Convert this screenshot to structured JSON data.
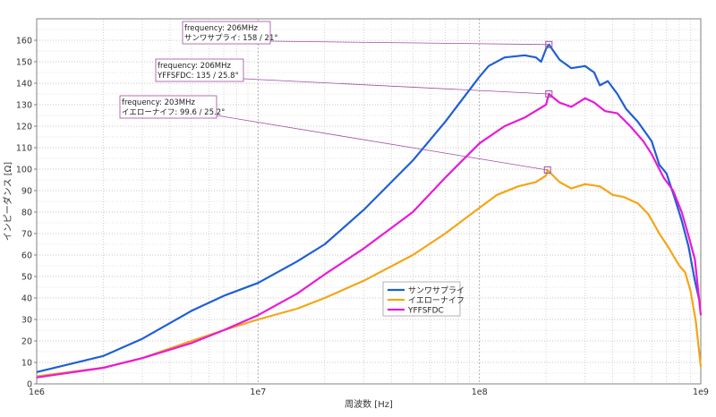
{
  "chart_data": {
    "type": "line",
    "xlabel": "周波数 [Hz]",
    "ylabel": "インピーダンス [Ω]",
    "xscale": "log",
    "xlim": [
      1000000,
      1000000000
    ],
    "ylim": [
      0,
      170
    ],
    "grid": true,
    "legend_position": "bottom-center",
    "x_tick_labels": [
      {
        "value": 1000000,
        "label": "1e6"
      },
      {
        "value": 10000000,
        "label": "1e7"
      },
      {
        "value": 100000000,
        "label": "1e8"
      },
      {
        "value": 1000000000,
        "label": "1e9"
      }
    ],
    "y_ticks": [
      0,
      10,
      20,
      30,
      40,
      50,
      60,
      70,
      80,
      90,
      100,
      110,
      120,
      130,
      140,
      150,
      160
    ],
    "series": [
      {
        "name": "サンワサプライ",
        "color": "#1f5fd6",
        "points": [
          [
            1000000,
            5.5
          ],
          [
            2000000,
            13
          ],
          [
            3000000,
            21
          ],
          [
            5000000,
            34
          ],
          [
            7000000,
            41
          ],
          [
            10000000,
            47
          ],
          [
            15000000,
            57
          ],
          [
            20000000,
            65
          ],
          [
            30000000,
            81
          ],
          [
            50000000,
            104
          ],
          [
            70000000,
            122
          ],
          [
            100000000,
            143
          ],
          [
            110000000,
            148
          ],
          [
            130000000,
            152
          ],
          [
            160000000,
            153
          ],
          [
            180000000,
            152
          ],
          [
            190000000,
            150
          ],
          [
            200000000,
            156
          ],
          [
            206000000,
            158
          ],
          [
            230000000,
            151
          ],
          [
            260000000,
            147
          ],
          [
            300000000,
            148
          ],
          [
            330000000,
            145
          ],
          [
            350000000,
            139
          ],
          [
            380000000,
            141
          ],
          [
            420000000,
            135
          ],
          [
            460000000,
            128
          ],
          [
            520000000,
            122
          ],
          [
            600000000,
            113
          ],
          [
            650000000,
            102
          ],
          [
            700000000,
            98
          ],
          [
            760000000,
            87
          ],
          [
            820000000,
            76
          ],
          [
            880000000,
            64
          ],
          [
            940000000,
            48
          ],
          [
            980000000,
            40
          ]
        ]
      },
      {
        "name": "イエローナイフ",
        "color": "#f5a515",
        "points": [
          [
            1000000,
            3.5
          ],
          [
            2000000,
            7.5
          ],
          [
            3000000,
            12
          ],
          [
            5000000,
            20
          ],
          [
            7000000,
            25
          ],
          [
            10000000,
            30
          ],
          [
            15000000,
            35
          ],
          [
            20000000,
            40
          ],
          [
            30000000,
            48
          ],
          [
            50000000,
            60
          ],
          [
            70000000,
            70
          ],
          [
            100000000,
            82
          ],
          [
            120000000,
            88
          ],
          [
            150000000,
            92
          ],
          [
            180000000,
            94
          ],
          [
            200000000,
            97
          ],
          [
            203000000,
            99.6
          ],
          [
            230000000,
            94
          ],
          [
            260000000,
            91
          ],
          [
            300000000,
            93
          ],
          [
            350000000,
            92
          ],
          [
            400000000,
            88
          ],
          [
            450000000,
            87
          ],
          [
            520000000,
            84
          ],
          [
            580000000,
            79
          ],
          [
            650000000,
            70
          ],
          [
            720000000,
            63
          ],
          [
            800000000,
            55
          ],
          [
            850000000,
            52
          ],
          [
            900000000,
            43
          ],
          [
            950000000,
            29
          ],
          [
            1000000000,
            8
          ]
        ]
      },
      {
        "name": "YFFSFDC",
        "color": "#e81ad8",
        "points": [
          [
            1000000,
            3
          ],
          [
            2000000,
            7.5
          ],
          [
            3000000,
            12
          ],
          [
            5000000,
            19
          ],
          [
            7000000,
            25
          ],
          [
            10000000,
            32
          ],
          [
            15000000,
            42
          ],
          [
            20000000,
            51
          ],
          [
            30000000,
            63
          ],
          [
            50000000,
            80
          ],
          [
            70000000,
            96
          ],
          [
            100000000,
            112
          ],
          [
            130000000,
            120
          ],
          [
            160000000,
            124
          ],
          [
            200000000,
            130
          ],
          [
            206000000,
            135
          ],
          [
            230000000,
            131
          ],
          [
            260000000,
            129
          ],
          [
            300000000,
            133
          ],
          [
            330000000,
            131
          ],
          [
            370000000,
            127
          ],
          [
            420000000,
            126
          ],
          [
            480000000,
            120
          ],
          [
            550000000,
            113
          ],
          [
            600000000,
            107
          ],
          [
            680000000,
            96
          ],
          [
            750000000,
            90
          ],
          [
            820000000,
            80
          ],
          [
            880000000,
            69
          ],
          [
            940000000,
            58
          ],
          [
            1000000000,
            32
          ]
        ]
      }
    ],
    "annotations": [
      {
        "line1": "frequency: 206MHz",
        "line2": "サンワサプライ: 158 / 21°",
        "point": [
          206000000,
          158
        ],
        "color": "#1f5fd6"
      },
      {
        "line1": "frequency: 206MHz",
        "line2": "YFFSFDC: 135 / 25.8°",
        "point": [
          206000000,
          135
        ],
        "color": "#e81ad8"
      },
      {
        "line1": "frequency: 203MHz",
        "line2": "イエローナイフ: 99.6 / 25.2°",
        "point": [
          203000000,
          99.6
        ],
        "color": "#f5a515"
      }
    ]
  }
}
